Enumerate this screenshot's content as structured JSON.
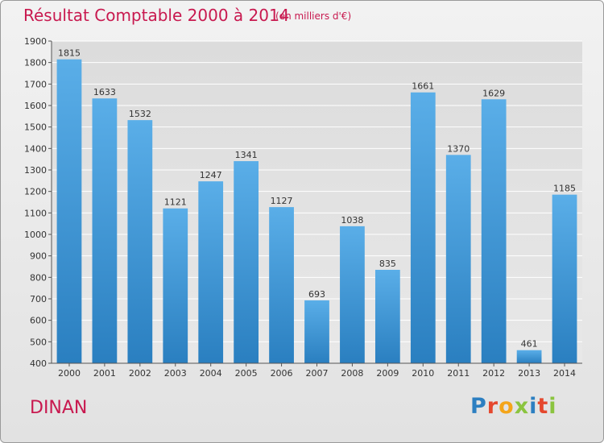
{
  "header": {
    "title": "Résultat Comptable 2000 à 2014",
    "subtitle": "(en milliers d'€)"
  },
  "footer": {
    "city": "DINAN",
    "logo_text": "Proxiti"
  },
  "colors": {
    "title": "#c8194f",
    "bar_top": "#5aaee8",
    "bar_bottom": "#2a7fc0",
    "grid": "#ffffff"
  },
  "chart_data": {
    "type": "bar",
    "title": "Résultat Comptable 2000 à 2014",
    "subtitle": "(en milliers d'€)",
    "categories": [
      "2000",
      "2001",
      "2002",
      "2003",
      "2004",
      "2005",
      "2006",
      "2007",
      "2008",
      "2009",
      "2010",
      "2011",
      "2012",
      "2013",
      "2014"
    ],
    "values": [
      1815,
      1633,
      1532,
      1121,
      1247,
      1341,
      1127,
      693,
      1038,
      835,
      1661,
      1370,
      1629,
      461,
      1185
    ],
    "ylim": [
      400,
      1900
    ],
    "yticks": [
      400,
      500,
      600,
      700,
      800,
      900,
      1000,
      1100,
      1200,
      1300,
      1400,
      1500,
      1600,
      1700,
      1800,
      1900
    ],
    "grid": true,
    "data_labels": true
  }
}
